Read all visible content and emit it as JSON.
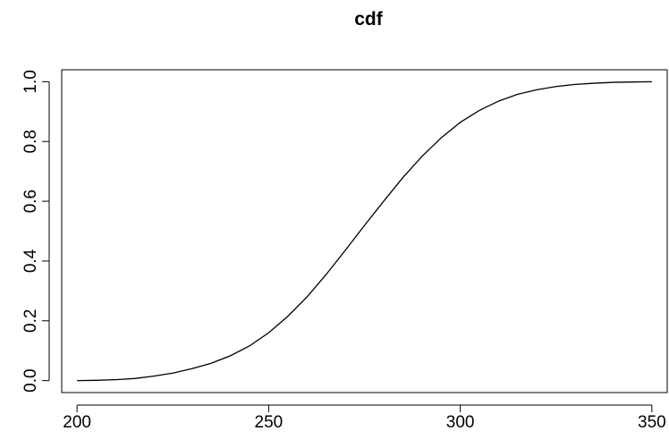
{
  "chart_data": {
    "type": "line",
    "title": "cdf",
    "xlabel": "",
    "ylabel": "",
    "xlim": [
      196,
      354
    ],
    "ylim": [
      -0.04,
      1.04
    ],
    "x_ticks": [
      200,
      250,
      300,
      350
    ],
    "y_ticks": [
      0.0,
      0.2,
      0.4,
      0.6,
      0.8,
      1.0
    ],
    "x_tick_labels": [
      "200",
      "250",
      "300",
      "350"
    ],
    "y_tick_labels": [
      "0.0",
      "0.2",
      "0.4",
      "0.6",
      "0.8",
      "1.0"
    ],
    "grid": false,
    "legend": "none",
    "line_color": "#000000",
    "series": [
      {
        "x": [
          200,
          205,
          210,
          215,
          220,
          225,
          230,
          235,
          240,
          245,
          250,
          255,
          260,
          265,
          270,
          275,
          280,
          285,
          290,
          295,
          300,
          305,
          310,
          315,
          320,
          325,
          330,
          335,
          340,
          345,
          350
        ],
        "values": [
          0.0,
          0.001,
          0.003,
          0.007,
          0.015,
          0.025,
          0.04,
          0.058,
          0.083,
          0.116,
          0.16,
          0.215,
          0.28,
          0.355,
          0.436,
          0.519,
          0.6,
          0.679,
          0.75,
          0.812,
          0.864,
          0.904,
          0.935,
          0.958,
          0.973,
          0.984,
          0.991,
          0.995,
          0.998,
          0.999,
          1.0
        ]
      }
    ]
  }
}
